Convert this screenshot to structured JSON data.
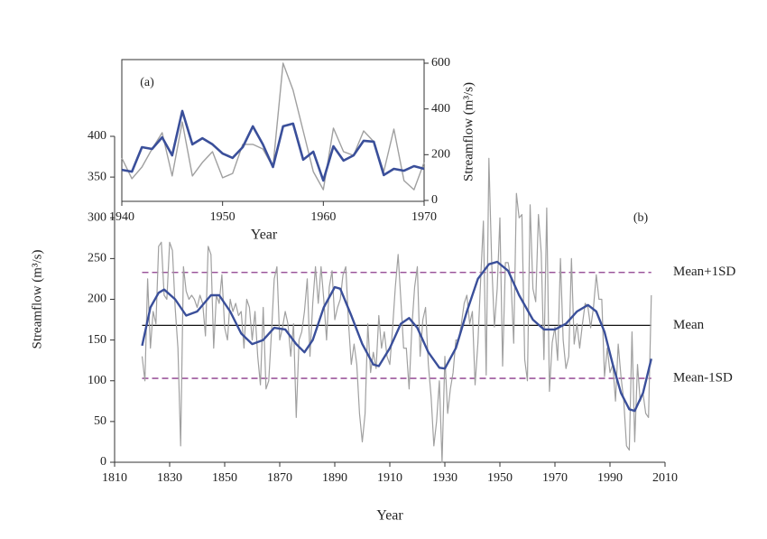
{
  "chart_data": [
    {
      "type": "line",
      "panel_label": "(b)",
      "x_label": "Year",
      "y_label": "Streamflow (m³/s)",
      "xlim": [
        1810,
        2010
      ],
      "xticks": [
        1810,
        1830,
        1850,
        1870,
        1890,
        1910,
        1930,
        1950,
        1970,
        1990,
        2010
      ],
      "ylim": [
        0,
        400
      ],
      "yticks": [
        0,
        50,
        100,
        150,
        200,
        250,
        300,
        350,
        400
      ],
      "series": [
        {
          "color": "#a0a0a0",
          "width": 1.2,
          "x": [
            1820,
            1821,
            1822,
            1823,
            1824,
            1825,
            1826,
            1827,
            1828,
            1829,
            1830,
            1831,
            1832,
            1833,
            1834,
            1835,
            1836,
            1837,
            1838,
            1839,
            1840,
            1841,
            1842,
            1843,
            1844,
            1845,
            1846,
            1847,
            1848,
            1849,
            1850,
            1851,
            1852,
            1853,
            1854,
            1855,
            1856,
            1857,
            1858,
            1859,
            1860,
            1861,
            1862,
            1863,
            1864,
            1865,
            1866,
            1867,
            1868,
            1869,
            1870,
            1871,
            1872,
            1873,
            1874,
            1875,
            1876,
            1877,
            1878,
            1879,
            1880,
            1881,
            1882,
            1883,
            1884,
            1885,
            1886,
            1887,
            1888,
            1889,
            1890,
            1891,
            1892,
            1893,
            1894,
            1895,
            1896,
            1897,
            1898,
            1899,
            1900,
            1901,
            1902,
            1903,
            1904,
            1905,
            1906,
            1907,
            1908,
            1909,
            1910,
            1911,
            1912,
            1913,
            1914,
            1915,
            1916,
            1917,
            1918,
            1919,
            1920,
            1921,
            1922,
            1923,
            1924,
            1925,
            1926,
            1927,
            1928,
            1929,
            1930,
            1931,
            1932,
            1933,
            1934,
            1935,
            1936,
            1937,
            1938,
            1939,
            1940,
            1941,
            1942,
            1943,
            1944,
            1945,
            1946,
            1947,
            1948,
            1949,
            1950,
            1951,
            1952,
            1953,
            1954,
            1955,
            1956,
            1957,
            1958,
            1959,
            1960,
            1961,
            1962,
            1963,
            1964,
            1965,
            1966,
            1967,
            1968,
            1969,
            1970,
            1971,
            1972,
            1973,
            1974,
            1975,
            1976,
            1977,
            1978,
            1979,
            1980,
            1981,
            1982,
            1983,
            1984,
            1985,
            1986,
            1987,
            1988,
            1989,
            1990,
            1991,
            1992,
            1993,
            1994,
            1995,
            1996,
            1997,
            1998,
            1999,
            2000,
            2001,
            2002,
            2003,
            2004,
            2005
          ],
          "values": [
            130,
            100,
            225,
            140,
            185,
            170,
            265,
            270,
            205,
            200,
            270,
            260,
            190,
            140,
            20,
            240,
            210,
            200,
            205,
            200,
            190,
            205,
            195,
            155,
            265,
            255,
            140,
            205,
            195,
            230,
            165,
            150,
            200,
            185,
            195,
            180,
            185,
            140,
            200,
            190,
            150,
            185,
            130,
            95,
            190,
            90,
            100,
            160,
            225,
            240,
            150,
            165,
            185,
            170,
            130,
            170,
            55,
            150,
            160,
            185,
            225,
            130,
            195,
            240,
            195,
            240,
            200,
            150,
            215,
            235,
            175,
            190,
            200,
            230,
            240,
            170,
            120,
            145,
            120,
            60,
            25,
            60,
            170,
            110,
            135,
            115,
            180,
            140,
            160,
            130,
            120,
            165,
            215,
            255,
            200,
            140,
            140,
            90,
            165,
            215,
            240,
            130,
            175,
            190,
            120,
            80,
            20,
            50,
            100,
            0,
            130,
            60,
            90,
            110,
            150,
            150,
            170,
            195,
            205,
            170,
            185,
            95,
            146,
            225,
            296,
            107,
            373,
            245,
            166,
            213,
            300,
            118,
            245,
            245,
            225,
            146,
            330,
            300,
            304,
            126,
            100,
            316,
            213,
            197,
            304,
            257,
            126,
            312,
            87,
            147,
            166,
            125,
            250,
            150,
            115,
            130,
            250,
            145,
            170,
            140,
            170,
            195,
            190,
            165,
            190,
            230,
            200,
            200,
            105,
            140,
            110,
            120,
            75,
            145,
            105,
            75,
            20,
            15,
            160,
            25,
            120,
            75,
            85,
            60,
            55,
            205
          ]
        },
        {
          "color": "#3a4f9a",
          "width": 2.4,
          "x": [
            1820,
            1823,
            1826,
            1828,
            1832,
            1836,
            1840,
            1845,
            1848,
            1852,
            1856,
            1860,
            1864,
            1868,
            1872,
            1876,
            1879,
            1882,
            1886,
            1890,
            1892,
            1896,
            1900,
            1904,
            1906,
            1910,
            1914,
            1917,
            1920,
            1924,
            1928,
            1930,
            1934,
            1938,
            1942,
            1946,
            1949,
            1953,
            1957,
            1962,
            1966,
            1970,
            1974,
            1978,
            1982,
            1985,
            1988,
            1991,
            1994,
            1997,
            1999,
            2002,
            2005
          ],
          "values": [
            143,
            190,
            208,
            212,
            200,
            180,
            185,
            205,
            205,
            185,
            158,
            145,
            150,
            165,
            163,
            145,
            135,
            150,
            190,
            215,
            213,
            180,
            145,
            120,
            118,
            140,
            170,
            177,
            165,
            135,
            116,
            115,
            140,
            185,
            225,
            243,
            246,
            235,
            205,
            175,
            163,
            163,
            170,
            185,
            193,
            185,
            160,
            120,
            85,
            65,
            63,
            85,
            127
          ]
        }
      ],
      "hlines": [
        {
          "label": "Mean+1SD",
          "value": 233,
          "color": "#8b3a8b",
          "dashed": true
        },
        {
          "label": "Mean",
          "value": 168,
          "color": "#111111",
          "dashed": false
        },
        {
          "label": "Mean-1SD",
          "value": 103,
          "color": "#8b3a8b",
          "dashed": true
        }
      ]
    },
    {
      "type": "line",
      "panel_label": "(a)",
      "x_label": "Year",
      "y_label": "Streamflow (m³/s)",
      "y_axis_side": "right",
      "xlim": [
        1940,
        1970
      ],
      "xticks": [
        1940,
        1950,
        1960,
        1970
      ],
      "ylim": [
        0,
        600
      ],
      "yticks": [
        0,
        200,
        400,
        600
      ],
      "series": [
        {
          "color": "#a0a0a0",
          "width": 1.4,
          "x": [
            1940,
            1941,
            1942,
            1943,
            1944,
            1945,
            1946,
            1947,
            1948,
            1949,
            1950,
            1951,
            1952,
            1953,
            1954,
            1955,
            1956,
            1957,
            1958,
            1959,
            1960,
            1961,
            1962,
            1963,
            1964,
            1965,
            1966,
            1967,
            1968,
            1969,
            1970
          ],
          "values": [
            185,
            95,
            146,
            225,
            296,
            107,
            343,
            107,
            166,
            213,
            99,
            118,
            245,
            245,
            225,
            146,
            600,
            482,
            304,
            126,
            47,
            316,
            213,
            197,
            304,
            257,
            126,
            312,
            87,
            47,
            166
          ]
        },
        {
          "color": "#3a4f9a",
          "width": 2.6,
          "x": [
            1940,
            1941,
            1942,
            1943,
            1944,
            1945,
            1946,
            1947,
            1948,
            1949,
            1950,
            1951,
            1952,
            1953,
            1954,
            1955,
            1956,
            1957,
            1958,
            1959,
            1960,
            1961,
            1962,
            1963,
            1964,
            1965,
            1966,
            1967,
            1968,
            1969,
            1970
          ],
          "values": [
            134,
            126,
            233,
            225,
            276,
            197,
            391,
            245,
            272,
            245,
            205,
            186,
            233,
            324,
            245,
            146,
            324,
            336,
            178,
            213,
            87,
            237,
            174,
            197,
            261,
            257,
            111,
            138,
            130,
            150,
            138
          ]
        }
      ]
    }
  ]
}
